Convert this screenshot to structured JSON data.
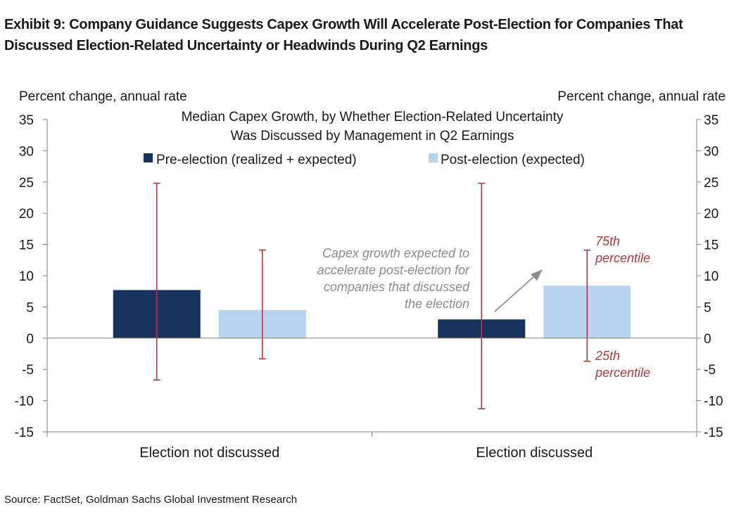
{
  "header": {
    "exhibit_title": "Exhibit 9: Company Guidance Suggests Capex Growth Will Accelerate Post-Election for Companies That Discussed Election-Related Uncertainty or Headwinds During Q2 Earnings"
  },
  "footer": {
    "source": "Source: FactSet, Goldman Sachs Global Investment Research"
  },
  "colors": {
    "pre": "#17325c",
    "post": "#b7d3ef",
    "whisker": "#b03a3a",
    "annotation": "#8c8c8c",
    "axis": "#7f7f7f"
  },
  "chart_data": {
    "type": "bar",
    "title_lines": [
      "Median Capex Growth, by Whether Election-Related Uncertainty",
      "Was Discussed by Management in Q2 Earnings"
    ],
    "ylabel_left": "Percent change, annual rate",
    "ylabel_right": "Percent change, annual rate",
    "ylim": [
      -15,
      35
    ],
    "yticks": [
      35,
      30,
      25,
      20,
      15,
      10,
      5,
      0,
      -5,
      -10,
      -15
    ],
    "categories": [
      "Election not discussed",
      "Election discussed"
    ],
    "series": [
      {
        "name": "Pre-election (realized + expected)",
        "values": [
          7.7,
          3.0
        ],
        "p25": [
          -6.7,
          -11.3
        ],
        "p75": [
          24.8,
          24.8
        ]
      },
      {
        "name": "Post-election (expected)",
        "values": [
          4.5,
          8.4
        ],
        "p25": [
          -3.3,
          -3.7
        ],
        "p75": [
          14.1,
          14.1
        ]
      }
    ],
    "legend_position": "top-center",
    "annotations": {
      "arrow_note": [
        "Capex growth expected to",
        "accelerate post-election for",
        "companies that discussed",
        "the election"
      ],
      "p75_label": [
        "75th",
        "percentile"
      ],
      "p25_label": [
        "25th",
        "percentile"
      ]
    }
  }
}
